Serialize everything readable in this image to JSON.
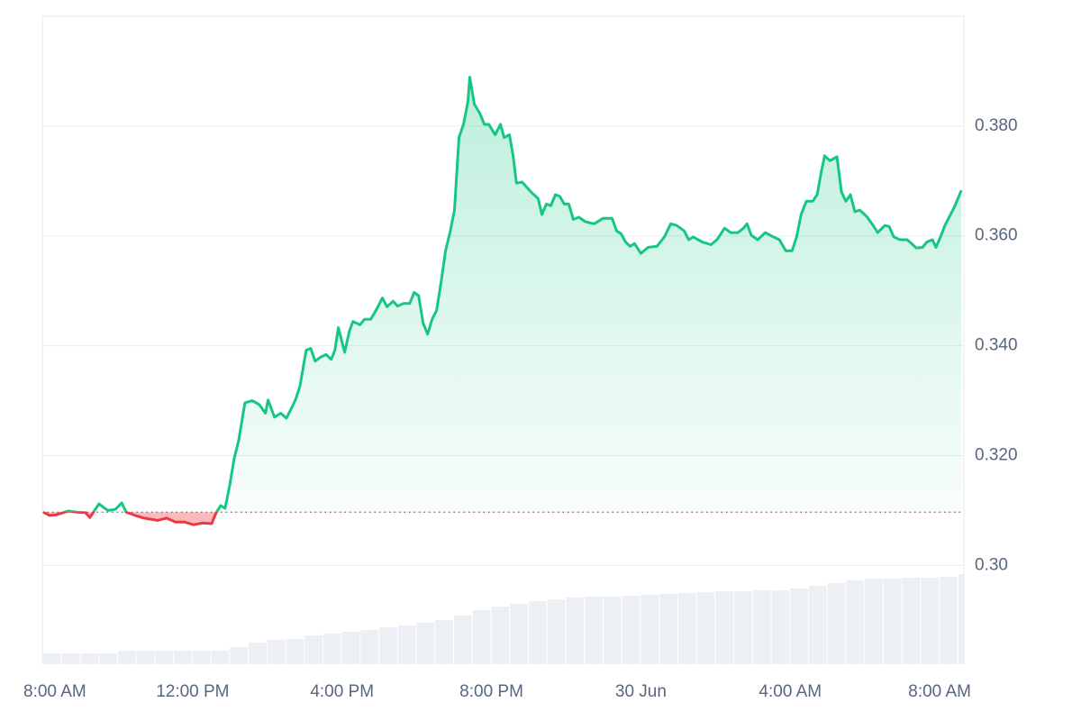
{
  "chart_data": {
    "type": "line",
    "color_up": "#16c784",
    "color_down": "#ea3943",
    "baseline": 0.3097,
    "xlim": [
      0,
      24.6
    ],
    "ylim": [
      0.282,
      0.4
    ],
    "xticks": [
      {
        "value": 0,
        "label": "8:00 AM"
      },
      {
        "value": 4,
        "label": "12:00 PM"
      },
      {
        "value": 8,
        "label": "4:00 PM"
      },
      {
        "value": 12,
        "label": "8:00 PM"
      },
      {
        "value": 16,
        "label": "30 Jun"
      },
      {
        "value": 20,
        "label": "4:00 AM"
      },
      {
        "value": 24,
        "label": "8:00 AM"
      }
    ],
    "yticks": [
      {
        "value": 0.3,
        "label": "0.30"
      },
      {
        "value": 0.32,
        "label": "0.320"
      },
      {
        "value": 0.34,
        "label": "0.340"
      },
      {
        "value": 0.36,
        "label": "0.360"
      },
      {
        "value": 0.38,
        "label": "0.380"
      }
    ],
    "grid": true,
    "x": [
      0,
      0.17,
      0.34,
      0.53,
      0.67,
      0.89,
      1.13,
      1.25,
      1.49,
      1.73,
      1.93,
      2.1,
      2.22,
      2.46,
      2.7,
      3.06,
      3.3,
      3.54,
      3.78,
      4.02,
      4.27,
      4.51,
      4.63,
      4.75,
      4.87,
      4.99,
      5.11,
      5.23,
      5.4,
      5.59,
      5.78,
      5.95,
      6.02,
      6.19,
      6.36,
      6.51,
      6.6,
      6.75,
      6.87,
      7.04,
      7.16,
      7.28,
      7.42,
      7.57,
      7.71,
      7.81,
      7.9,
      8.07,
      8.19,
      8.29,
      8.48,
      8.6,
      8.77,
      8.92,
      9.08,
      9.2,
      9.37,
      9.49,
      9.64,
      9.81,
      9.93,
      10.05,
      10.17,
      10.29,
      10.41,
      10.53,
      10.65,
      10.77,
      10.89,
      11.01,
      11.13,
      11.25,
      11.37,
      11.42,
      11.54,
      11.69,
      11.81,
      11.93,
      12.1,
      12.24,
      12.34,
      12.48,
      12.58,
      12.67,
      12.82,
      13.06,
      13.25,
      13.35,
      13.47,
      13.59,
      13.71,
      13.83,
      13.95,
      14.07,
      14.19,
      14.34,
      14.51,
      14.75,
      14.99,
      15.23,
      15.35,
      15.47,
      15.59,
      15.71,
      15.83,
      16.0,
      16.19,
      16.43,
      16.63,
      16.8,
      16.96,
      17.16,
      17.28,
      17.4,
      17.64,
      17.88,
      18.05,
      18.24,
      18.41,
      18.6,
      18.75,
      18.84,
      18.96,
      19.13,
      19.33,
      19.52,
      19.71,
      19.88,
      20.05,
      20.17,
      20.29,
      20.43,
      20.6,
      20.72,
      20.82,
      20.92,
      21.06,
      21.25,
      21.37,
      21.49,
      21.61,
      21.73,
      21.86,
      22.05,
      22.22,
      22.34,
      22.53,
      22.65,
      22.77,
      22.94,
      23.13,
      23.25,
      23.37,
      23.54,
      23.66,
      23.81,
      23.9,
      24.02,
      24.14,
      24.39,
      24.58
    ],
    "values": [
      0.3097,
      0.3091,
      0.3092,
      0.3096,
      0.3099,
      0.3097,
      0.3096,
      0.3087,
      0.3112,
      0.31,
      0.3102,
      0.3114,
      0.3097,
      0.3091,
      0.3086,
      0.3082,
      0.3086,
      0.3079,
      0.3079,
      0.3074,
      0.3077,
      0.3076,
      0.3096,
      0.3109,
      0.3104,
      0.3145,
      0.3194,
      0.3227,
      0.3296,
      0.33,
      0.3293,
      0.3277,
      0.3301,
      0.327,
      0.3277,
      0.3268,
      0.328,
      0.3301,
      0.3326,
      0.3392,
      0.3395,
      0.3372,
      0.3379,
      0.3384,
      0.3375,
      0.3392,
      0.3433,
      0.3388,
      0.3425,
      0.3444,
      0.3438,
      0.3448,
      0.3448,
      0.3466,
      0.3487,
      0.3471,
      0.3481,
      0.3472,
      0.3477,
      0.3477,
      0.3497,
      0.3491,
      0.3441,
      0.3421,
      0.3448,
      0.3464,
      0.3515,
      0.3573,
      0.3606,
      0.3647,
      0.3779,
      0.3803,
      0.3844,
      0.3889,
      0.384,
      0.3823,
      0.3803,
      0.3803,
      0.3784,
      0.3803,
      0.3779,
      0.3784,
      0.3746,
      0.3696,
      0.3698,
      0.368,
      0.3668,
      0.3639,
      0.3658,
      0.3655,
      0.3675,
      0.3672,
      0.3658,
      0.3658,
      0.363,
      0.3634,
      0.3626,
      0.3622,
      0.3632,
      0.3632,
      0.3609,
      0.3604,
      0.3589,
      0.3581,
      0.3586,
      0.3568,
      0.3579,
      0.3581,
      0.3598,
      0.3622,
      0.3619,
      0.3609,
      0.3593,
      0.3598,
      0.3589,
      0.3584,
      0.3594,
      0.3614,
      0.3606,
      0.3606,
      0.3614,
      0.3622,
      0.3601,
      0.3593,
      0.3606,
      0.3599,
      0.3593,
      0.3573,
      0.3573,
      0.3598,
      0.3639,
      0.3663,
      0.3663,
      0.3675,
      0.3713,
      0.3746,
      0.3737,
      0.3744,
      0.368,
      0.3663,
      0.3675,
      0.3644,
      0.3647,
      0.3635,
      0.3619,
      0.3606,
      0.3619,
      0.3617,
      0.3598,
      0.3593,
      0.3593,
      0.3586,
      0.3578,
      0.3579,
      0.3589,
      0.3593,
      0.3579,
      0.3598,
      0.3619,
      0.3652,
      0.3683
    ],
    "volume": {
      "color": "#eceff4",
      "x": [
        0,
        0.5,
        1,
        1.5,
        2,
        2.5,
        3,
        3.5,
        4,
        4.5,
        5,
        5.5,
        6,
        6.5,
        7,
        7.5,
        8,
        8.5,
        9,
        9.5,
        10,
        10.5,
        11,
        11.5,
        12,
        12.5,
        13,
        13.5,
        14,
        14.5,
        15,
        15.5,
        16,
        16.5,
        17,
        17.5,
        18,
        18.5,
        19,
        19.5,
        20,
        20.5,
        21,
        21.5,
        22,
        22.5,
        23,
        23.5,
        24,
        24.5
      ],
      "values": [
        12,
        12,
        12,
        12,
        15,
        15,
        15,
        15,
        15,
        15,
        19,
        24,
        27,
        28,
        32,
        34,
        36,
        38,
        41,
        43,
        46,
        49,
        54,
        60,
        64,
        67,
        70,
        72,
        74,
        75,
        75,
        76,
        77,
        78,
        79,
        80,
        81,
        81,
        82,
        82,
        84,
        87,
        90,
        93,
        95,
        95,
        96,
        96,
        97,
        100
      ]
    }
  }
}
